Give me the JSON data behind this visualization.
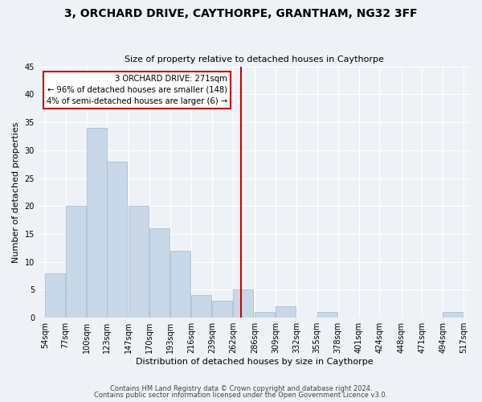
{
  "title": "3, ORCHARD DRIVE, CAYTHORPE, GRANTHAM, NG32 3FF",
  "subtitle": "Size of property relative to detached houses in Caythorpe",
  "xlabel": "Distribution of detached houses by size in Caythorpe",
  "ylabel": "Number of detached properties",
  "bins": [
    54,
    77,
    100,
    123,
    147,
    170,
    193,
    216,
    239,
    262,
    286,
    309,
    332,
    355,
    378,
    401,
    424,
    448,
    471,
    494,
    517
  ],
  "counts": [
    8,
    20,
    34,
    28,
    20,
    16,
    12,
    4,
    3,
    5,
    1,
    2,
    0,
    1,
    0,
    0,
    0,
    0,
    0,
    1
  ],
  "bar_color": "#c8d8e8",
  "bar_edge_color": "#a0b8cc",
  "vline_x": 271,
  "vline_color": "#cc0000",
  "annotation_text": "3 ORCHARD DRIVE: 271sqm\n← 96% of detached houses are smaller (148)\n4% of semi-detached houses are larger (6) →",
  "annotation_box_color": "#ffffff",
  "annotation_edge_color": "#cc0000",
  "ylim": [
    0,
    45
  ],
  "yticks": [
    0,
    5,
    10,
    15,
    20,
    25,
    30,
    35,
    40,
    45
  ],
  "tick_labels": [
    "54sqm",
    "77sqm",
    "100sqm",
    "123sqm",
    "147sqm",
    "170sqm",
    "193sqm",
    "216sqm",
    "239sqm",
    "262sqm",
    "286sqm",
    "309sqm",
    "332sqm",
    "355sqm",
    "378sqm",
    "401sqm",
    "424sqm",
    "448sqm",
    "471sqm",
    "494sqm",
    "517sqm"
  ],
  "footer1": "Contains HM Land Registry data © Crown copyright and database right 2024.",
  "footer2": "Contains public sector information licensed under the Open Government Licence v3.0.",
  "bg_color": "#eef2f7",
  "grid_color": "#ffffff",
  "title_fontsize": 10,
  "subtitle_fontsize": 8,
  "ylabel_fontsize": 8,
  "xlabel_fontsize": 8,
  "tick_fontsize": 7,
  "footer_fontsize": 6
}
